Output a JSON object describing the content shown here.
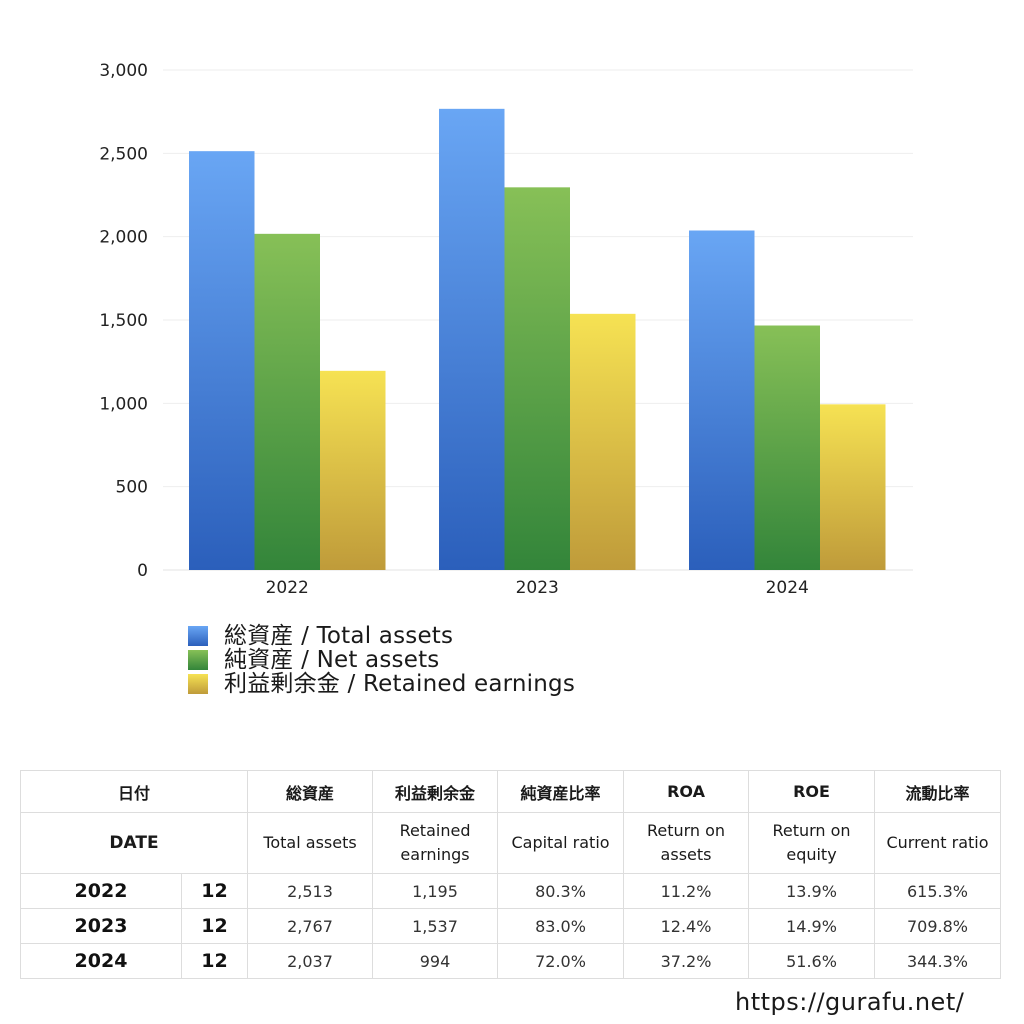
{
  "chart_data": {
    "type": "bar",
    "categories": [
      "2022",
      "2023",
      "2024"
    ],
    "series": [
      {
        "name": "総資産 / Total assets",
        "values": [
          2513,
          2767,
          2037
        ],
        "color_top": "#69a6f4",
        "color_bottom": "#2b5fbb"
      },
      {
        "name": "純資産 / Net assets",
        "values": [
          2017,
          2296,
          1467
        ],
        "color_top": "#87c057",
        "color_bottom": "#33853a"
      },
      {
        "name": "利益剰余金 / Retained earnings",
        "values": [
          1195,
          1537,
          994
        ],
        "color_top": "#f6e253",
        "color_bottom": "#bf9b3a"
      }
    ],
    "yticks": [
      "0",
      "500",
      "1,000",
      "1,500",
      "2,000",
      "2,500",
      "3,000"
    ],
    "ylim": [
      0,
      3000
    ],
    "grid": true,
    "legend_position": "bottom-left"
  },
  "table": {
    "header_jp": [
      "日付",
      "総資産",
      "利益剰余金",
      "純資産比率",
      "ROA",
      "ROE",
      "流動比率"
    ],
    "header_en": [
      "DATE",
      "Total assets",
      "Retained earnings",
      "Capital ratio",
      "Return on assets",
      "Return on equity",
      "Current ratio"
    ],
    "rows": [
      {
        "year": "2022",
        "month": "12",
        "total_assets": "2,513",
        "retained": "1,195",
        "capital_ratio": "80.3%",
        "roa": "11.2%",
        "roe": "13.9%",
        "current_ratio": "615.3%"
      },
      {
        "year": "2023",
        "month": "12",
        "total_assets": "2,767",
        "retained": "1,537",
        "capital_ratio": "83.0%",
        "roa": "12.4%",
        "roe": "14.9%",
        "current_ratio": "709.8%"
      },
      {
        "year": "2024",
        "month": "12",
        "total_assets": "2,037",
        "retained": "994",
        "capital_ratio": "72.0%",
        "roa": "37.2%",
        "roe": "51.6%",
        "current_ratio": "344.3%"
      }
    ]
  },
  "footer": {
    "url": "https://gurafu.net/"
  }
}
